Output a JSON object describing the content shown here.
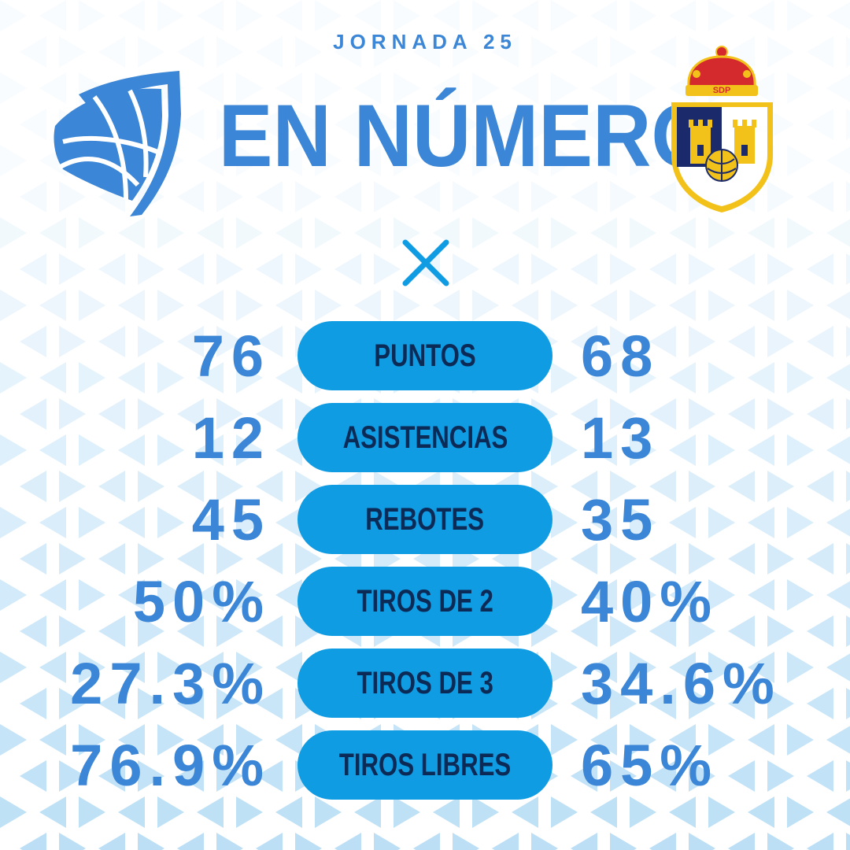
{
  "header": {
    "subtitle": "JORNADA 25",
    "title": "EN NÚMEROS",
    "home_logo_icon": "basketball-shield-logo-icon",
    "away_crest_icon": "sdp-crest-icon",
    "away_crest_text": "SDP",
    "versus_icon": "cross-icon"
  },
  "stats": [
    {
      "label": "PUNTOS",
      "home": "76",
      "away": "68"
    },
    {
      "label": "ASISTENCIAS",
      "home": "12",
      "away": "13"
    },
    {
      "label": "REBOTES",
      "home": "45",
      "away": "35"
    },
    {
      "label": "TIROS DE 2",
      "home": "50%",
      "away": "40%"
    },
    {
      "label": "TIROS DE 3",
      "home": "27.3%",
      "away": "34.6%"
    },
    {
      "label": "TIROS LIBRES",
      "home": "76.9%",
      "away": "65%"
    }
  ],
  "colors": {
    "accent_blue": "#3b86d6",
    "pill_blue": "#0f9ce3",
    "pill_text": "#0b2a55",
    "crest_red": "#d42a2e",
    "crest_gold": "#f2c21b",
    "crest_navy": "#1b2a6b"
  }
}
